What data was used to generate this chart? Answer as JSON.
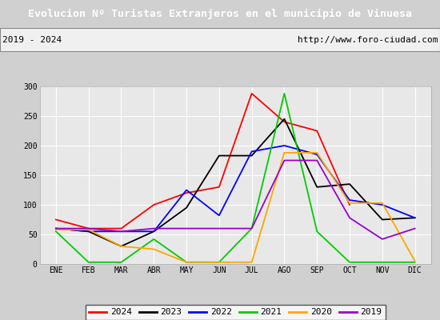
{
  "title": "Evolucion Nº Turistas Extranjeros en el municipio de Vinuesa",
  "subtitle_left": "2019 - 2024",
  "subtitle_right": "http://www.foro-ciudad.com",
  "months": [
    "ENE",
    "FEB",
    "MAR",
    "ABR",
    "MAY",
    "JUN",
    "JUL",
    "AGO",
    "SEP",
    "OCT",
    "NOV",
    "DIC"
  ],
  "ylim": [
    0,
    300
  ],
  "yticks": [
    0,
    50,
    100,
    150,
    200,
    250,
    300
  ],
  "series": {
    "2024": {
      "color": "#ff0000",
      "values": [
        75,
        60,
        60,
        100,
        120,
        130,
        288,
        240,
        225,
        100,
        null,
        null
      ]
    },
    "2023": {
      "color": "#000000",
      "values": [
        60,
        55,
        30,
        55,
        95,
        183,
        183,
        245,
        130,
        135,
        75,
        78
      ]
    },
    "2022": {
      "color": "#0000ff",
      "values": [
        60,
        55,
        55,
        55,
        125,
        82,
        190,
        200,
        185,
        108,
        100,
        78
      ]
    },
    "2021": {
      "color": "#00cc00",
      "values": [
        55,
        3,
        3,
        42,
        3,
        3,
        60,
        288,
        55,
        3,
        3,
        3
      ]
    },
    "2020": {
      "color": "#ffa500",
      "values": [
        58,
        58,
        30,
        25,
        3,
        3,
        3,
        188,
        188,
        103,
        103,
        5
      ]
    },
    "2019": {
      "color": "#9900cc",
      "values": [
        60,
        60,
        55,
        60,
        60,
        60,
        60,
        175,
        175,
        78,
        42,
        60
      ]
    }
  },
  "title_bg": "#4472c4",
  "title_color": "#ffffff",
  "plot_bg": "#e8e8e8",
  "grid_color": "#ffffff",
  "outer_bg": "#d0d0d0",
  "legend_order": [
    "2024",
    "2023",
    "2022",
    "2021",
    "2020",
    "2019"
  ]
}
